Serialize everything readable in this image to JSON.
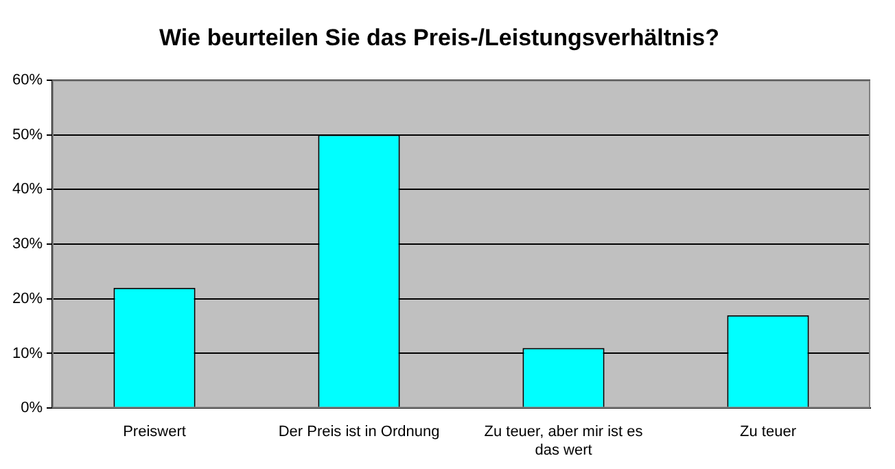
{
  "chart_data": {
    "type": "bar",
    "title": "Wie beurteilen Sie das Preis-/Leistungsverhältnis?",
    "categories": [
      "Preiswert",
      "Der Preis ist in Ordnung",
      "Zu teuer, aber mir ist es das wert",
      "Zu teuer"
    ],
    "values": [
      22,
      50,
      11,
      17
    ],
    "color": "#00ffff",
    "ylim": [
      0,
      60
    ],
    "yticks": [
      {
        "value": 0,
        "label": "0%"
      },
      {
        "value": 10,
        "label": "10%"
      },
      {
        "value": 20,
        "label": "20%"
      },
      {
        "value": 30,
        "label": "30%"
      },
      {
        "value": 40,
        "label": "40%"
      },
      {
        "value": 50,
        "label": "50%"
      },
      {
        "value": 60,
        "label": "60%"
      }
    ],
    "grid": "y",
    "legend": false
  }
}
